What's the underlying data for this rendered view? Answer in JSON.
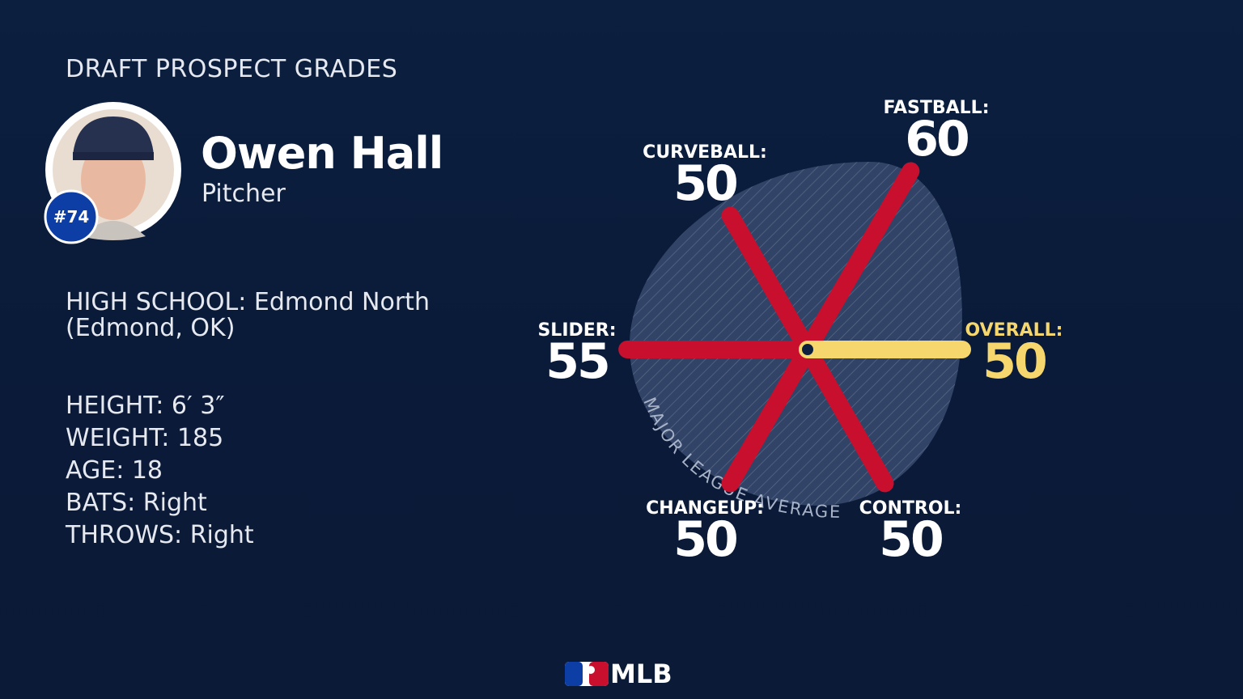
{
  "header": {
    "title": "DRAFT PROSPECT GRADES"
  },
  "player": {
    "name": "Owen Hall",
    "position": "Pitcher",
    "rank": "#74"
  },
  "details": {
    "school": [
      "HIGH SCHOOL: Edmond North",
      "(Edmond, OK)"
    ],
    "stats": [
      "HEIGHT: 6′ 3″",
      "WEIGHT: 185",
      "AGE: 18",
      "BATS: Right",
      "THROWS: Right"
    ]
  },
  "chart_data": {
    "type": "radar",
    "categories": [
      "OVERALL:",
      "FASTBALL:",
      "CURVEBALL:",
      "SLIDER:",
      "CHANGEUP:",
      "CONTROL:"
    ],
    "values": [
      50,
      60,
      50,
      55,
      50,
      50
    ],
    "colors": [
      "#f5d76e",
      "#c8102e",
      "#c8102e",
      "#c8102e",
      "#c8102e",
      "#c8102e"
    ],
    "rlim": [
      20,
      80
    ],
    "annotation": "MAJOR LEAGUE AVERAGE"
  },
  "footer": {
    "logo": "MLB"
  }
}
